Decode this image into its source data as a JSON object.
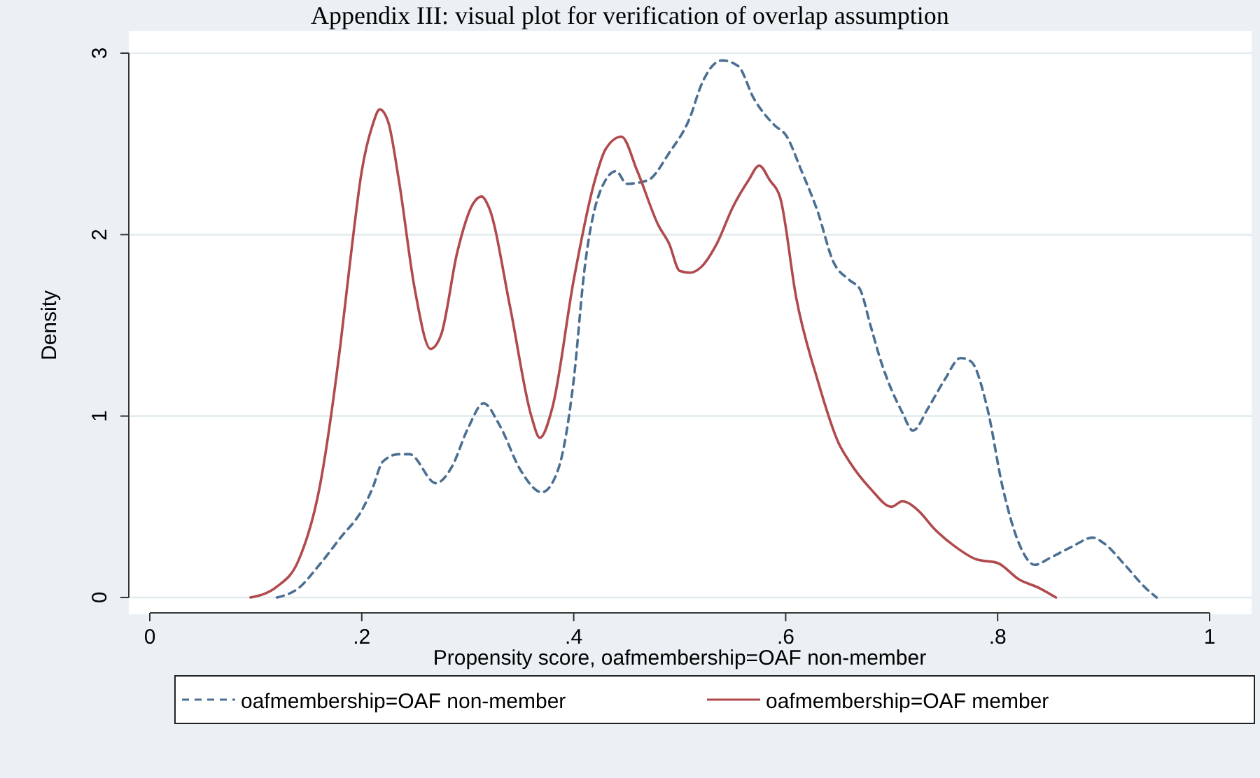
{
  "chart_data": {
    "type": "line",
    "title": "Appendix III: visual plot for verification of overlap assumption",
    "xlabel": "Propensity score, oafmembership=OAF non-member",
    "ylabel": "Density",
    "xlim": [
      0,
      1
    ],
    "xticks": [
      {
        "value": 0,
        "label": "0"
      },
      {
        "value": 0.2,
        "label": ".2"
      },
      {
        "value": 0.4,
        "label": ".4"
      },
      {
        "value": 0.6,
        "label": ".6"
      },
      {
        "value": 0.8,
        "label": ".8"
      },
      {
        "value": 1,
        "label": "1"
      }
    ],
    "ylim": [
      0,
      3
    ],
    "yticks": [
      0,
      1,
      2,
      3
    ],
    "grid": "y",
    "legend": "bottom",
    "series": [
      {
        "name": "oafmembership=OAF non-member",
        "color": "#4a6f93",
        "line_style": "dashed",
        "x": [
          0.12,
          0.14,
          0.16,
          0.18,
          0.2,
          0.21,
          0.22,
          0.235,
          0.245,
          0.27,
          0.285,
          0.3,
          0.315,
          0.33,
          0.35,
          0.37,
          0.385,
          0.4,
          0.41,
          0.43,
          0.44,
          0.45,
          0.47,
          0.49,
          0.51,
          0.52,
          0.54,
          0.555,
          0.57,
          0.59,
          0.6,
          0.615,
          0.63,
          0.645,
          0.66,
          0.67,
          0.68,
          0.69,
          0.71,
          0.72,
          0.735,
          0.75,
          0.765,
          0.775,
          0.79,
          0.805,
          0.82,
          0.835,
          0.85,
          0.87,
          0.89,
          0.9,
          0.92,
          0.94,
          0.95
        ],
        "values": [
          0,
          0.05,
          0.18,
          0.33,
          0.48,
          0.6,
          0.75,
          0.79,
          0.79,
          0.63,
          0.72,
          0.93,
          1.07,
          0.95,
          0.7,
          0.58,
          0.7,
          1.2,
          1.8,
          2.3,
          2.35,
          2.28,
          2.3,
          2.45,
          2.65,
          2.82,
          2.96,
          2.93,
          2.75,
          2.6,
          2.55,
          2.35,
          2.13,
          1.85,
          1.75,
          1.7,
          1.5,
          1.3,
          1.02,
          0.92,
          1.05,
          1.2,
          1.32,
          1.3,
          1.05,
          0.6,
          0.3,
          0.18,
          0.22,
          0.28,
          0.33,
          0.3,
          0.18,
          0.05,
          0
        ]
      },
      {
        "name": "oafmembership=OAF member",
        "color": "#b04a4c",
        "line_style": "solid",
        "x": [
          0.095,
          0.12,
          0.14,
          0.16,
          0.18,
          0.19,
          0.2,
          0.21,
          0.217,
          0.225,
          0.235,
          0.25,
          0.265,
          0.275,
          0.29,
          0.305,
          0.313,
          0.32,
          0.34,
          0.36,
          0.368,
          0.38,
          0.4,
          0.42,
          0.43,
          0.445,
          0.46,
          0.48,
          0.49,
          0.5,
          0.51,
          0.52,
          0.535,
          0.55,
          0.565,
          0.575,
          0.585,
          0.595,
          0.61,
          0.63,
          0.65,
          0.66,
          0.68,
          0.7,
          0.71,
          0.725,
          0.74,
          0.76,
          0.78,
          0.8,
          0.82,
          0.84,
          0.855
        ],
        "values": [
          0,
          0.06,
          0.2,
          0.6,
          1.4,
          1.9,
          2.35,
          2.6,
          2.69,
          2.62,
          2.3,
          1.7,
          1.37,
          1.45,
          1.9,
          2.17,
          2.21,
          2.15,
          1.6,
          1.0,
          0.88,
          1.05,
          1.75,
          2.3,
          2.47,
          2.54,
          2.35,
          2.05,
          1.95,
          1.8,
          1.79,
          1.82,
          1.95,
          2.15,
          2.3,
          2.38,
          2.3,
          2.2,
          1.65,
          1.2,
          0.85,
          0.75,
          0.6,
          0.5,
          0.53,
          0.48,
          0.38,
          0.28,
          0.21,
          0.19,
          0.1,
          0.05,
          0
        ]
      }
    ]
  }
}
